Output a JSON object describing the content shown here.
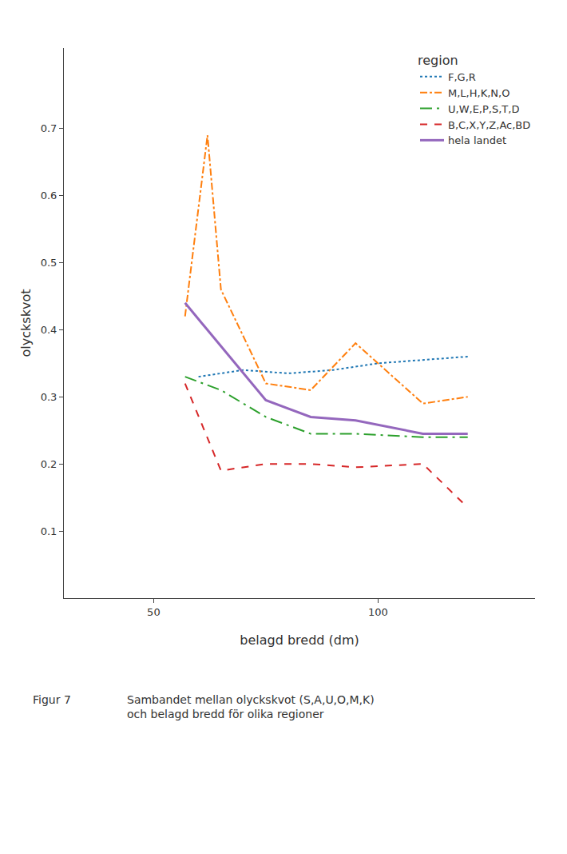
{
  "chart_data": {
    "type": "line",
    "x_label": "belagd bredd (dm)",
    "y_label": "olyckskvot",
    "legend_title": "region",
    "xlim": [
      30,
      135
    ],
    "ylim": [
      0,
      0.82
    ],
    "xticks": [
      50,
      100
    ],
    "yticks": [
      0.1,
      0.2,
      0.3,
      0.4,
      0.5,
      0.6,
      0.7
    ],
    "grid": false,
    "legend": "upper right",
    "series": [
      {
        "name": "F,G,R",
        "line_style": "dotted",
        "x": [
          60,
          70,
          80,
          90,
          100,
          110,
          120
        ],
        "values": [
          0.33,
          0.34,
          0.335,
          0.34,
          0.35,
          0.355,
          0.36
        ]
      },
      {
        "name": "M,L,H,K,N,O",
        "line_style": "dashdot",
        "x": [
          57,
          62,
          65,
          75,
          85,
          95,
          110,
          120
        ],
        "values": [
          0.42,
          0.69,
          0.46,
          0.32,
          0.31,
          0.38,
          0.29,
          0.3
        ]
      },
      {
        "name": "U,W,E,P,S,T,D",
        "line_style": "longdashdot",
        "x": [
          57,
          65,
          75,
          85,
          95,
          110,
          120
        ],
        "values": [
          0.33,
          0.31,
          0.27,
          0.245,
          0.245,
          0.24,
          0.24
        ]
      },
      {
        "name": "B,C,X,Y,Z,Ac,BD",
        "line_style": "dashed",
        "x": [
          57,
          65,
          75,
          85,
          95,
          110,
          120
        ],
        "values": [
          0.32,
          0.19,
          0.2,
          0.2,
          0.195,
          0.2,
          0.135
        ]
      },
      {
        "name": "hela landet",
        "line_style": "solid",
        "x": [
          57,
          65,
          75,
          85,
          95,
          110,
          120
        ],
        "values": [
          0.44,
          0.375,
          0.295,
          0.27,
          0.265,
          0.245,
          0.245
        ]
      }
    ],
    "annotations": [
      "Figur 7",
      "Sambandet mellan olyckskvot (S,A,U,O,M,K)",
      "och belagd bredd för olika regioner"
    ]
  }
}
